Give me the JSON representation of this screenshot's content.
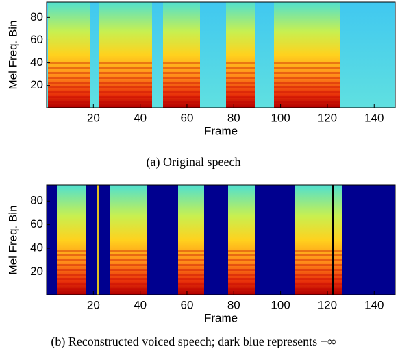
{
  "chart_data": [
    {
      "type": "heatmap",
      "caption": "(a) Original speech",
      "x_label": "Frame",
      "y_label": "Mel Freq. Bin",
      "xlim": [
        0,
        149
      ],
      "xticks": [
        20,
        40,
        60,
        80,
        100,
        120,
        140
      ],
      "ylim": [
        0.5,
        93.5
      ],
      "yticks": [
        20,
        40,
        60,
        80
      ]
    },
    {
      "type": "heatmap",
      "caption": "(b) Reconstructed voiced speech; dark blue represents −∞",
      "x_label": "Frame",
      "y_label": "Mel Freq. Bin",
      "xlim": [
        0,
        149
      ],
      "xticks": [
        20,
        40,
        60,
        80,
        100,
        120,
        140
      ],
      "ylim": [
        0.5,
        93.5
      ],
      "yticks": [
        20,
        40,
        60,
        80
      ]
    }
  ]
}
